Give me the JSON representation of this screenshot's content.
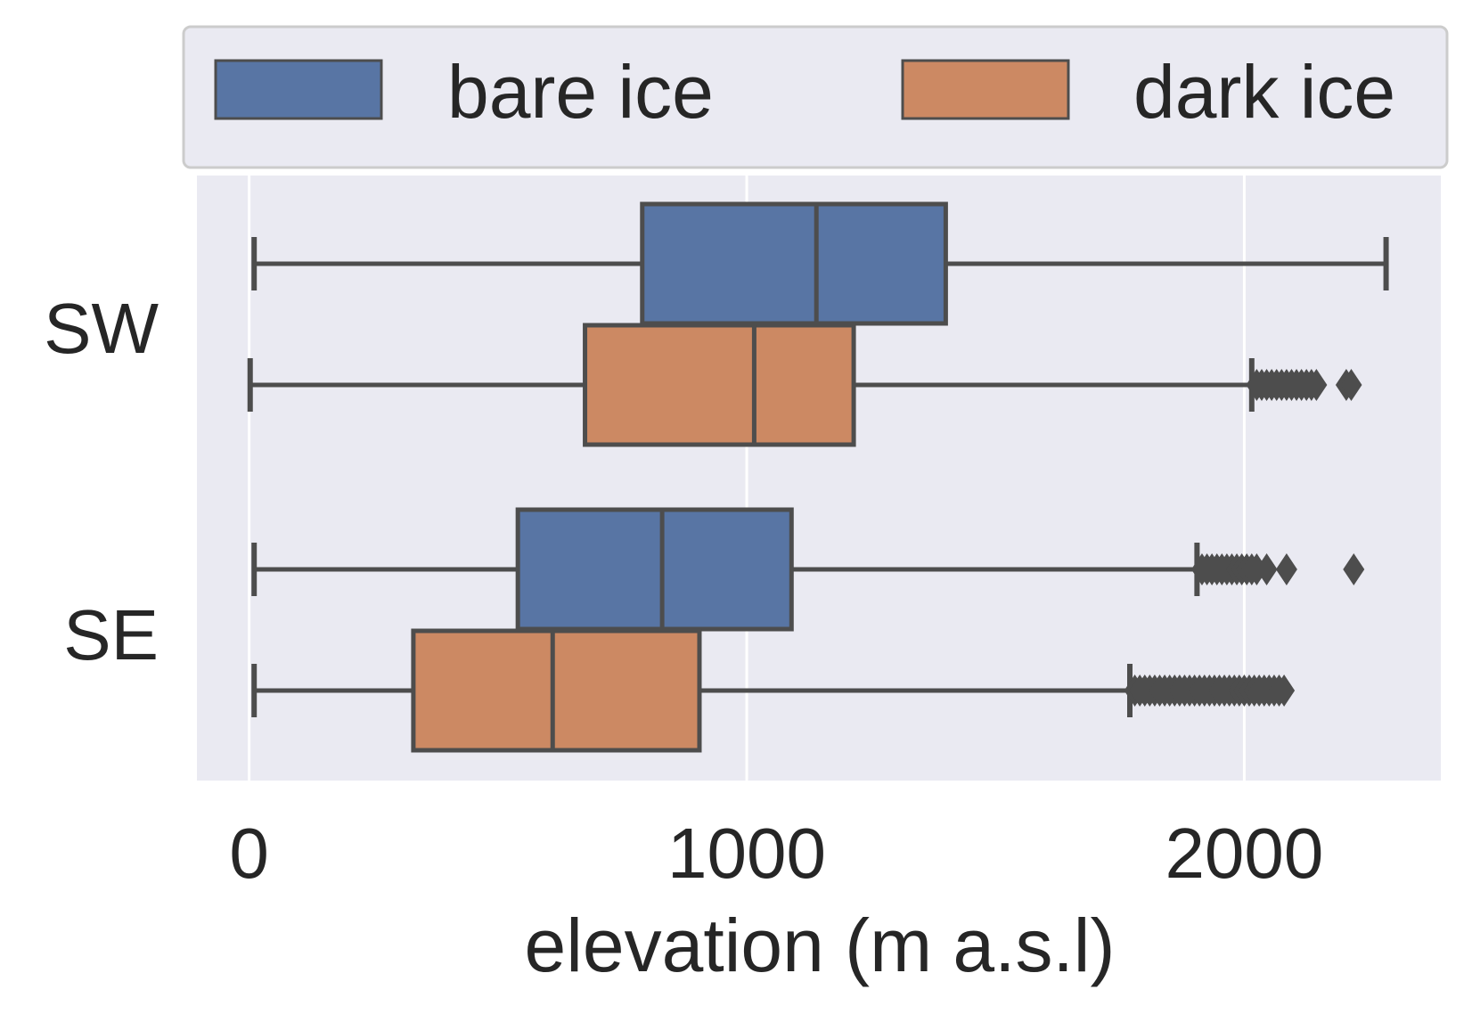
{
  "chart_data": {
    "type": "boxplot",
    "orientation": "horizontal",
    "xlabel": "elevation (m a.s.l)",
    "ylabel": "",
    "xlim": [
      -105,
      2395
    ],
    "xticks": [
      0,
      1000,
      2000
    ],
    "xtick_labels": [
      "0",
      "1000",
      "2000"
    ],
    "categories": [
      "SW",
      "SE"
    ],
    "grid": "x",
    "legend": {
      "position": "top",
      "columns": 2
    },
    "colors": {
      "bare ice": "#5875a4",
      "dark ice": "#cc8963",
      "background": "#eaeaf2",
      "edge": "#4d4d4d"
    },
    "series": [
      {
        "name": "bare ice",
        "color": "#5875a4",
        "boxes": [
          {
            "category": "SW",
            "whisker_low": 10,
            "q1": 790,
            "median": 1140,
            "q3": 1400,
            "whisker_high": 2285,
            "outliers": []
          },
          {
            "category": "SE",
            "whisker_low": 10,
            "q1": 540,
            "median": 830,
            "q3": 1090,
            "whisker_high": 1905,
            "outliers": [
              1915,
              1925,
              1935,
              1945,
              1955,
              1965,
              1975,
              1985,
              1995,
              2005,
              2015,
              2025,
              2045,
              2085,
              2220
            ]
          }
        ]
      },
      {
        "name": "dark ice",
        "color": "#cc8963",
        "boxes": [
          {
            "category": "SW",
            "whisker_low": 2,
            "q1": 675,
            "median": 1015,
            "q3": 1215,
            "whisker_high": 2015,
            "outliers": [
              2025,
              2035,
              2045,
              2055,
              2065,
              2075,
              2085,
              2095,
              2105,
              2115,
              2125,
              2135,
              2145,
              2205,
              2215
            ]
          },
          {
            "category": "SE",
            "whisker_low": 10,
            "q1": 330,
            "median": 610,
            "q3": 905,
            "whisker_high": 1770,
            "outliers": [
              1780,
              1790,
              1800,
              1810,
              1820,
              1830,
              1840,
              1850,
              1860,
              1870,
              1880,
              1890,
              1900,
              1910,
              1920,
              1930,
              1940,
              1950,
              1960,
              1970,
              1980,
              1990,
              2000,
              2010,
              2020,
              2030,
              2040,
              2050,
              2060,
              2070,
              2080
            ]
          }
        ]
      }
    ]
  }
}
